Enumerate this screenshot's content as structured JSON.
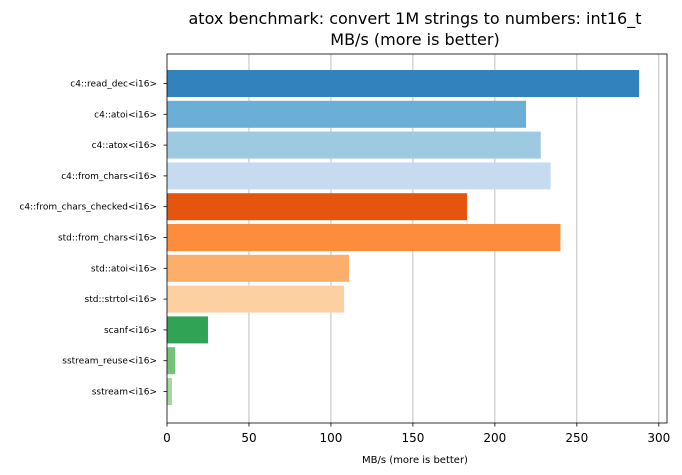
{
  "chart_data": {
    "type": "bar",
    "orientation": "horizontal",
    "title": "atox benchmark: convert 1M strings to numbers: int16_t",
    "subtitle": "MB/s (more is better)",
    "xlabel": "MB/s (more is better)",
    "ylabel": "",
    "xlim": [
      0,
      305
    ],
    "xticks": [
      0,
      50,
      100,
      150,
      200,
      250,
      300
    ],
    "grid": "x",
    "legend": "none",
    "categories": [
      "c4::read_dec<i16>",
      "c4::atoi<i16>",
      "c4::atox<i16>",
      "c4::from_chars<i16>",
      "c4::from_chars_checked<i16>",
      "std::from_chars<i16>",
      "std::atoi<i16>",
      "std::strtol<i16>",
      "scanf<i16>",
      "sstream_reuse<i16>",
      "sstream<i16>"
    ],
    "values": [
      288,
      219,
      228,
      234,
      183,
      240,
      111,
      108,
      25,
      5,
      3
    ],
    "colors": [
      "#3182bd",
      "#6baed6",
      "#9ecae1",
      "#c6dbef",
      "#e6550d",
      "#fd8d3c",
      "#fdae6b",
      "#fdd0a2",
      "#31a354",
      "#74c476",
      "#a1d99b"
    ]
  }
}
